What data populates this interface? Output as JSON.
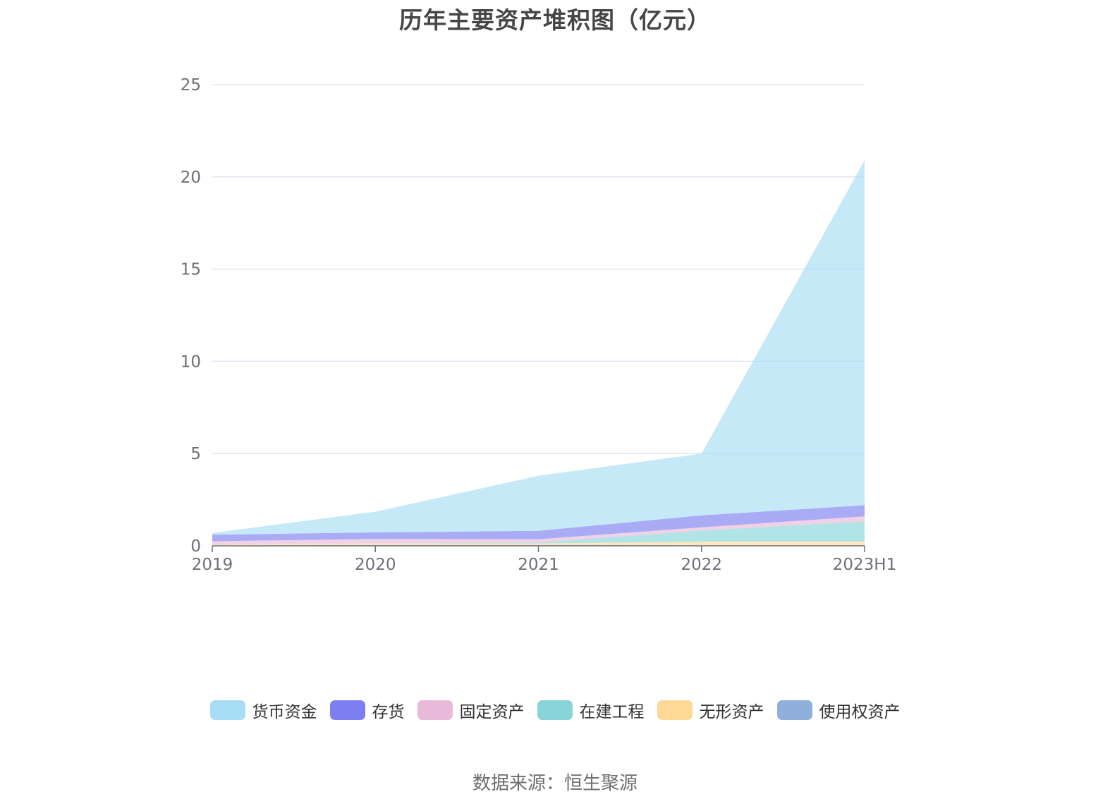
{
  "title": "历年主要资产堆积图（亿元）",
  "source_note": "数据来源：恒生聚源",
  "chart_data": {
    "type": "area",
    "stacked": true,
    "title": "历年主要资产堆积图（亿元）",
    "categories": [
      "2019",
      "2020",
      "2021",
      "2022",
      "2023H1"
    ],
    "ylim": [
      0,
      25
    ],
    "yticks": [
      0,
      5,
      10,
      15,
      20,
      25
    ],
    "grid": true,
    "legend_position": "bottom",
    "series": [
      {
        "name": "使用权资产",
        "color": "#8fb0dc",
        "values": [
          0.02,
          0.05,
          0.05,
          0.03,
          0.03
        ]
      },
      {
        "name": "无形资产",
        "color": "#ffd896",
        "values": [
          0.05,
          0.08,
          0.08,
          0.2,
          0.2
        ]
      },
      {
        "name": "在建工程",
        "color": "#87d5d9",
        "values": [
          0.0,
          0.0,
          0.05,
          0.6,
          1.1
        ]
      },
      {
        "name": "固定资产",
        "color": "#e8b9d8",
        "values": [
          0.18,
          0.25,
          0.18,
          0.17,
          0.27
        ]
      },
      {
        "name": "存货",
        "color": "#7b7ff0",
        "values": [
          0.35,
          0.35,
          0.45,
          0.65,
          0.6
        ]
      },
      {
        "name": "货币资金",
        "color": "#a7ddf5",
        "values": [
          0.1,
          1.12,
          2.99,
          3.35,
          18.7
        ]
      }
    ]
  },
  "legend_order": [
    "货币资金",
    "存货",
    "固定资产",
    "在建工程",
    "无形资产",
    "使用权资产"
  ]
}
